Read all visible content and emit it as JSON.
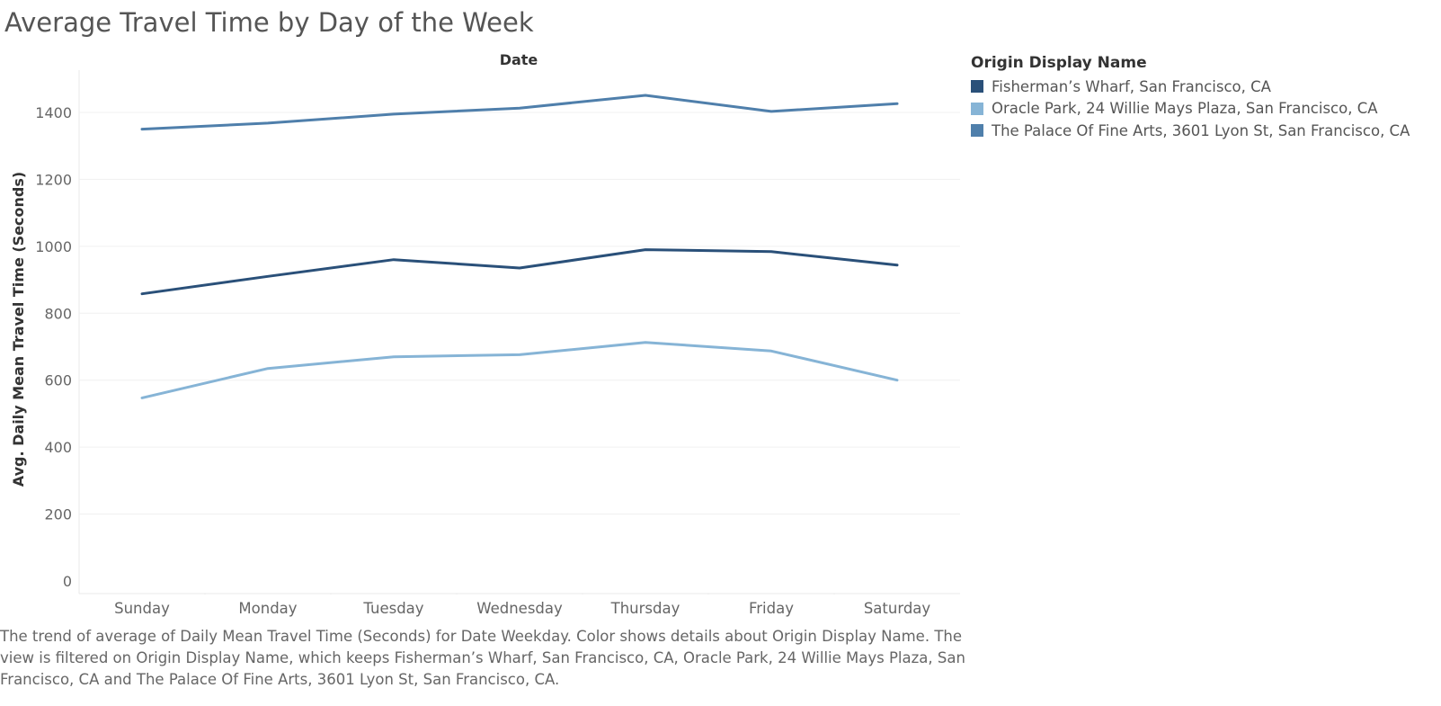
{
  "page": {
    "title": "Average Travel Time by Day of the Week",
    "caption": "The trend of average of Daily Mean Travel Time (Seconds) for Date Weekday.  Color shows details about Origin Display Name. The view is filtered on Origin Display Name, which keeps Fisherman’s Wharf, San Francisco, CA, Oracle Park, 24 Willie Mays Plaza, San Francisco, CA and The Palace Of Fine Arts, 3601 Lyon St, San Francisco, CA."
  },
  "legend": {
    "title": "Origin Display Name",
    "items": [
      {
        "label": "Fisherman’s Wharf, San Francisco, CA",
        "color": "#2a5079"
      },
      {
        "label": "Oracle Park, 24 Willie Mays Plaza, San Francisco, CA",
        "color": "#86b4d6"
      },
      {
        "label": "The Palace Of Fine Arts, 3601 Lyon St, San Francisco, CA",
        "color": "#4f7fab"
      }
    ]
  },
  "chart_data": {
    "type": "line",
    "title": "Average Travel Time by Day of the Week",
    "xlabel": "Date",
    "ylabel": "Avg. Daily Mean Travel Time (Seconds)",
    "categories": [
      "Sunday",
      "Monday",
      "Tuesday",
      "Wednesday",
      "Thursday",
      "Friday",
      "Saturday"
    ],
    "ylim": [
      0,
      1480
    ],
    "yticks": [
      0,
      200,
      400,
      600,
      800,
      1000,
      1200,
      1400
    ],
    "grid": true,
    "legend_position": "right",
    "series": [
      {
        "name": "Fisherman’s Wharf, San Francisco, CA",
        "color": "#2a5079",
        "values": [
          858,
          910,
          960,
          935,
          990,
          984,
          944
        ]
      },
      {
        "name": "Oracle Park, 24 Willie Mays Plaza, San Francisco, CA",
        "color": "#86b4d6",
        "values": [
          547,
          635,
          670,
          676,
          713,
          687,
          600
        ]
      },
      {
        "name": "The Palace Of Fine Arts, 3601 Lyon St, San Francisco, CA",
        "color": "#4f7fab",
        "values": [
          1350,
          1368,
          1395,
          1413,
          1451,
          1403,
          1426
        ]
      }
    ]
  }
}
